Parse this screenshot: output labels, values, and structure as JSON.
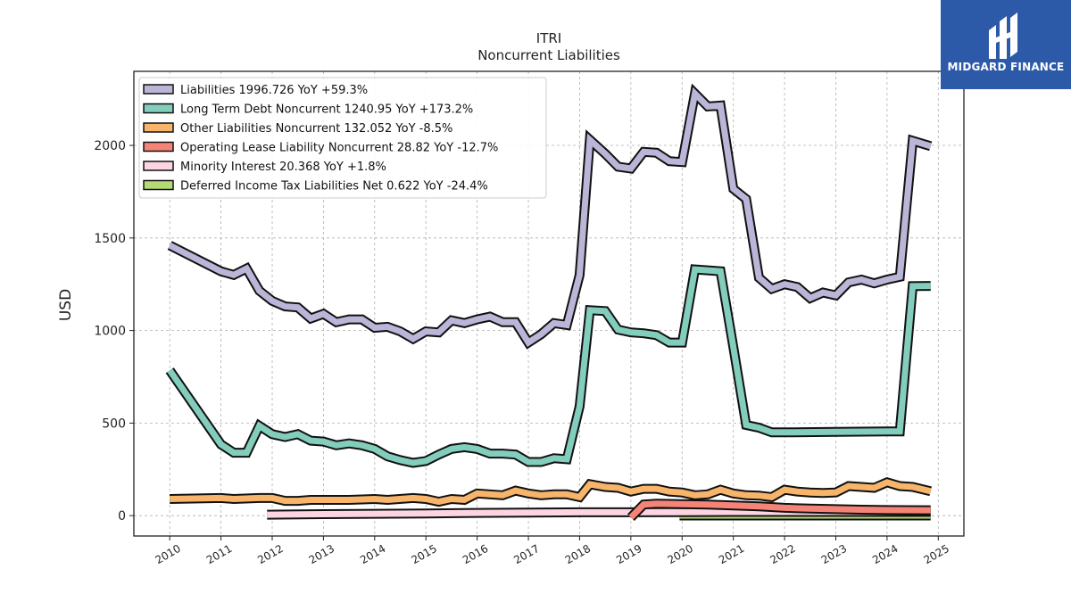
{
  "chart_data": {
    "type": "area",
    "title": "ITRI",
    "subtitle": "Noncurrent  Liabilities",
    "xlabel": "",
    "ylabel": "USD",
    "xlim": [
      2009.3,
      2025.5
    ],
    "ylim": [
      -110,
      2400
    ],
    "x_ticks": [
      "2010",
      "2011",
      "2012",
      "2013",
      "2014",
      "2015",
      "2016",
      "2017",
      "2018",
      "2019",
      "2020",
      "2021",
      "2022",
      "2023",
      "2024",
      "2025"
    ],
    "y_ticks": [
      0,
      500,
      1000,
      1500,
      2000
    ],
    "y_tick_labels": [
      "0",
      "500",
      "1000",
      "1500",
      "2000"
    ],
    "grid": true,
    "legend_position": "top-left",
    "series": [
      {
        "name": "Liabilities  1996.726 YoY +59.3%",
        "color": "#bab6d8",
        "points": [
          [
            2010,
            1460
          ],
          [
            2011,
            1320
          ],
          [
            2011.25,
            1300
          ],
          [
            2011.5,
            1335
          ],
          [
            2011.75,
            1215
          ],
          [
            2012,
            1160
          ],
          [
            2012.25,
            1130
          ],
          [
            2012.5,
            1125
          ],
          [
            2012.75,
            1065
          ],
          [
            2013,
            1090
          ],
          [
            2013.25,
            1045
          ],
          [
            2013.5,
            1060
          ],
          [
            2013.75,
            1060
          ],
          [
            2014,
            1015
          ],
          [
            2014.25,
            1020
          ],
          [
            2014.5,
            995
          ],
          [
            2014.75,
            955
          ],
          [
            2015,
            995
          ],
          [
            2015.25,
            990
          ],
          [
            2015.5,
            1055
          ],
          [
            2015.75,
            1040
          ],
          [
            2016,
            1060
          ],
          [
            2016.25,
            1075
          ],
          [
            2016.5,
            1045
          ],
          [
            2016.75,
            1045
          ],
          [
            2017,
            935
          ],
          [
            2017.25,
            980
          ],
          [
            2017.5,
            1040
          ],
          [
            2017.75,
            1030
          ],
          [
            2018,
            1300
          ],
          [
            2018.2,
            2030
          ],
          [
            2018.5,
            1955
          ],
          [
            2018.75,
            1885
          ],
          [
            2019,
            1875
          ],
          [
            2019.25,
            1965
          ],
          [
            2019.5,
            1960
          ],
          [
            2019.75,
            1915
          ],
          [
            2020,
            1910
          ],
          [
            2020.25,
            2280
          ],
          [
            2020.5,
            2210
          ],
          [
            2020.75,
            2215
          ],
          [
            2021,
            1765
          ],
          [
            2021.25,
            1710
          ],
          [
            2021.5,
            1285
          ],
          [
            2021.75,
            1225
          ],
          [
            2022,
            1250
          ],
          [
            2022.25,
            1235
          ],
          [
            2022.5,
            1175
          ],
          [
            2022.75,
            1205
          ],
          [
            2023,
            1190
          ],
          [
            2023.25,
            1260
          ],
          [
            2023.5,
            1275
          ],
          [
            2023.75,
            1255
          ],
          [
            2024,
            1275
          ],
          [
            2024.25,
            1290
          ],
          [
            2024.5,
            2025
          ],
          [
            2024.85,
            1996
          ]
        ]
      },
      {
        "name": "Long Term Debt Noncurrent  1240.95 YoY +173.2%",
        "color": "#82cdbc",
        "points": [
          [
            2010,
            785
          ],
          [
            2011,
            385
          ],
          [
            2011.25,
            340
          ],
          [
            2011.5,
            340
          ],
          [
            2011.75,
            485
          ],
          [
            2012,
            440
          ],
          [
            2012.25,
            425
          ],
          [
            2012.5,
            440
          ],
          [
            2012.75,
            405
          ],
          [
            2013,
            400
          ],
          [
            2013.25,
            380
          ],
          [
            2013.5,
            390
          ],
          [
            2013.75,
            380
          ],
          [
            2014,
            360
          ],
          [
            2014.25,
            320
          ],
          [
            2014.5,
            300
          ],
          [
            2014.75,
            285
          ],
          [
            2015,
            295
          ],
          [
            2015.25,
            330
          ],
          [
            2015.5,
            360
          ],
          [
            2015.75,
            370
          ],
          [
            2016,
            360
          ],
          [
            2016.25,
            335
          ],
          [
            2016.5,
            335
          ],
          [
            2016.75,
            330
          ],
          [
            2017,
            290
          ],
          [
            2017.25,
            290
          ],
          [
            2017.5,
            310
          ],
          [
            2017.75,
            305
          ],
          [
            2018,
            590
          ],
          [
            2018.2,
            1110
          ],
          [
            2018.5,
            1105
          ],
          [
            2018.75,
            1005
          ],
          [
            2019,
            990
          ],
          [
            2019.25,
            985
          ],
          [
            2019.5,
            975
          ],
          [
            2019.75,
            935
          ],
          [
            2020,
            935
          ],
          [
            2020.25,
            1330
          ],
          [
            2020.5,
            1325
          ],
          [
            2020.75,
            1320
          ],
          [
            2021,
            910
          ],
          [
            2021.25,
            490
          ],
          [
            2021.5,
            475
          ],
          [
            2021.75,
            450
          ],
          [
            2022,
            450
          ],
          [
            2023,
            452
          ],
          [
            2024,
            455
          ],
          [
            2024.25,
            455
          ],
          [
            2024.5,
            1240
          ],
          [
            2024.85,
            1241
          ]
        ]
      },
      {
        "name": "Other Liabilities Noncurrent  132.052 YoY -8.5%",
        "color": "#f7b46b",
        "points": [
          [
            2010,
            90
          ],
          [
            2011,
            95
          ],
          [
            2011.25,
            90
          ],
          [
            2011.75,
            95
          ],
          [
            2012,
            95
          ],
          [
            2012.25,
            80
          ],
          [
            2012.5,
            80
          ],
          [
            2012.75,
            85
          ],
          [
            2013,
            85
          ],
          [
            2013.5,
            85
          ],
          [
            2014,
            90
          ],
          [
            2014.25,
            85
          ],
          [
            2014.75,
            95
          ],
          [
            2015,
            90
          ],
          [
            2015.25,
            75
          ],
          [
            2015.5,
            90
          ],
          [
            2015.75,
            85
          ],
          [
            2016,
            120
          ],
          [
            2016.5,
            110
          ],
          [
            2016.75,
            135
          ],
          [
            2017,
            120
          ],
          [
            2017.25,
            110
          ],
          [
            2017.5,
            115
          ],
          [
            2017.75,
            115
          ],
          [
            2018,
            100
          ],
          [
            2018.2,
            170
          ],
          [
            2018.5,
            155
          ],
          [
            2018.75,
            150
          ],
          [
            2019,
            130
          ],
          [
            2019.25,
            145
          ],
          [
            2019.5,
            145
          ],
          [
            2019.75,
            130
          ],
          [
            2020,
            125
          ],
          [
            2020.25,
            110
          ],
          [
            2020.5,
            115
          ],
          [
            2020.75,
            140
          ],
          [
            2021,
            120
          ],
          [
            2021.25,
            110
          ],
          [
            2021.5,
            108
          ],
          [
            2021.75,
            100
          ],
          [
            2022,
            140
          ],
          [
            2022.25,
            130
          ],
          [
            2022.5,
            125
          ],
          [
            2022.75,
            122
          ],
          [
            2023,
            125
          ],
          [
            2023.25,
            160
          ],
          [
            2023.5,
            155
          ],
          [
            2023.75,
            150
          ],
          [
            2024,
            180
          ],
          [
            2024.25,
            160
          ],
          [
            2024.5,
            155
          ],
          [
            2024.85,
            132
          ]
        ]
      },
      {
        "name": "Operating Lease Liability Noncurrent  28.82 YoY -12.7%",
        "color": "#f58478",
        "points": [
          [
            2019,
            -10
          ],
          [
            2019.25,
            60
          ],
          [
            2019.5,
            65
          ],
          [
            2020,
            62
          ],
          [
            2020.5,
            60
          ],
          [
            2021,
            55
          ],
          [
            2021.5,
            50
          ],
          [
            2022,
            42
          ],
          [
            2022.5,
            38
          ],
          [
            2023,
            35
          ],
          [
            2023.5,
            32
          ],
          [
            2024,
            30
          ],
          [
            2024.85,
            29
          ]
        ]
      },
      {
        "name": "Minority Interest  20.368 YoY +1.8%",
        "color": "#fcd4e2",
        "points": [
          [
            2011.9,
            5
          ],
          [
            2013,
            8
          ],
          [
            2014,
            10
          ],
          [
            2015,
            12
          ],
          [
            2016,
            15
          ],
          [
            2017,
            16
          ],
          [
            2018,
            18
          ],
          [
            2019,
            18
          ],
          [
            2020,
            19
          ],
          [
            2021,
            20
          ],
          [
            2022,
            20
          ],
          [
            2023,
            20
          ],
          [
            2024,
            20
          ],
          [
            2024.85,
            20
          ]
        ]
      },
      {
        "name": "Deferred Income Tax Liabilities Net  0.622 YoY -24.4%",
        "color": "#b6da74",
        "points": [
          [
            2019.95,
            0.8
          ],
          [
            2020.5,
            0.8
          ],
          [
            2021,
            0.7
          ],
          [
            2022,
            0.7
          ],
          [
            2023,
            0.7
          ],
          [
            2024,
            0.6
          ],
          [
            2024.85,
            0.6
          ]
        ]
      }
    ]
  },
  "logo": {
    "text": "MIDGARD FINANCE",
    "color": "#2d5aa8"
  }
}
